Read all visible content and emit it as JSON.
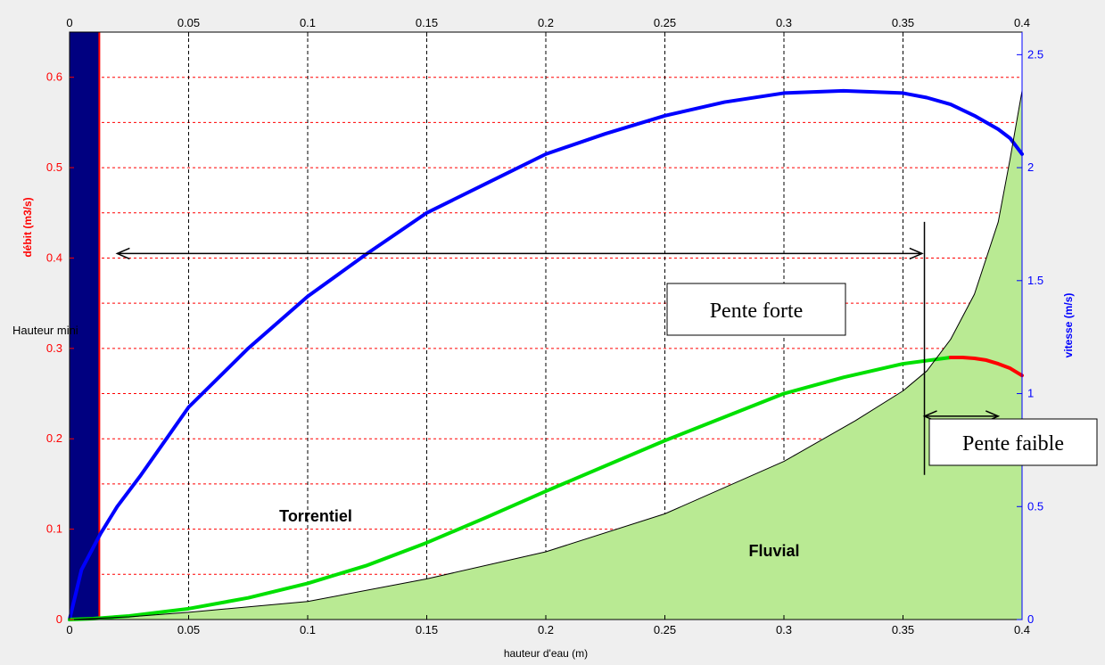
{
  "chart_data": {
    "type": "line",
    "x": {
      "label": "hauteur d'eau (m)",
      "lim": [
        0,
        0.4
      ],
      "ticks": [
        0,
        0.05,
        0.1,
        0.15,
        0.2,
        0.25,
        0.3,
        0.35,
        0.4
      ],
      "tick_labels": [
        "0",
        "0.05",
        "0.1",
        "0.15",
        "0.2",
        "0.25",
        "0.3",
        "0.35",
        "0.4"
      ],
      "top_ticks_mirrored": true
    },
    "y_left": {
      "label": "débit (m3/s)",
      "lim": [
        0,
        0.65
      ],
      "ticks": [
        0,
        0.1,
        0.2,
        0.3,
        0.4,
        0.5,
        0.6
      ],
      "tick_labels": [
        "0",
        "0.1",
        "0.2",
        "0.3",
        "0.4",
        "0.5",
        "0.6"
      ],
      "color": "#ff0000",
      "grid": "dashed red every 0.05"
    },
    "y_right": {
      "label": "vitesse (m/s)",
      "lim": [
        0,
        2.6
      ],
      "ticks": [
        0,
        0.5,
        1,
        1.5,
        2,
        2.5
      ],
      "tick_labels": [
        "0",
        "0.5",
        "1",
        "1.5",
        "2",
        "2.5"
      ],
      "color": "#0000ff"
    },
    "grid": true,
    "series": [
      {
        "name": "",
        "axis": "right",
        "color": "#0000ff",
        "x": [
          0,
          0.005,
          0.013,
          0.02,
          0.03,
          0.05,
          0.075,
          0.1,
          0.125,
          0.15,
          0.175,
          0.2,
          0.225,
          0.25,
          0.275,
          0.3,
          0.325,
          0.35,
          0.36,
          0.37,
          0.38,
          0.39,
          0.395,
          0.4
        ],
        "y": [
          0,
          0.22,
          0.38,
          0.5,
          0.64,
          0.94,
          1.2,
          1.43,
          1.62,
          1.8,
          1.93,
          2.06,
          2.15,
          2.23,
          2.29,
          2.33,
          2.34,
          2.33,
          2.31,
          2.28,
          2.23,
          2.17,
          2.13,
          2.06
        ]
      },
      {
        "name": "",
        "axis": "left",
        "color": "#00e000",
        "x": [
          0,
          0.01,
          0.025,
          0.05,
          0.075,
          0.1,
          0.125,
          0.15,
          0.175,
          0.2,
          0.225,
          0.25,
          0.275,
          0.3,
          0.325,
          0.35,
          0.37
        ],
        "y": [
          0,
          0.001,
          0.004,
          0.012,
          0.024,
          0.04,
          0.06,
          0.085,
          0.113,
          0.142,
          0.17,
          0.198,
          0.224,
          0.25,
          0.268,
          0.283,
          0.29
        ]
      },
      {
        "name": "",
        "axis": "left",
        "color": "#ff0000",
        "x": [
          0.37,
          0.375,
          0.38,
          0.385,
          0.39,
          0.395,
          0.4
        ],
        "y": [
          0.29,
          0.29,
          0.289,
          0.287,
          0.283,
          0.278,
          0.27
        ]
      },
      {
        "name": "",
        "axis": "left",
        "color": "#000000",
        "fill": "#b9ea93",
        "x": [
          0,
          0.025,
          0.05,
          0.1,
          0.15,
          0.2,
          0.25,
          0.3,
          0.33,
          0.35,
          0.36,
          0.37,
          0.38,
          0.39,
          0.395,
          0.4
        ],
        "y": [
          0,
          0.003,
          0.008,
          0.02,
          0.045,
          0.075,
          0.117,
          0.175,
          0.22,
          0.253,
          0.275,
          0.31,
          0.36,
          0.44,
          0.51,
          0.585
        ]
      }
    ],
    "hauteur_mini": {
      "x": [
        0,
        0.0125
      ],
      "fill": "#000080",
      "edge_color": "#ff0000"
    },
    "annotations": {
      "mini_label": "Hauteur mini",
      "torrentiel": "Torrentiel",
      "fluvial": "Fluvial",
      "pente_forte": "Pente forte",
      "pente_faible": "Pente faible",
      "arrow_long": {
        "x": [
          0.02,
          0.358
        ],
        "y": 0.405
      },
      "arrow_short": {
        "x": [
          0.359,
          0.39
        ],
        "y": 0.225
      },
      "divider_x": 0.359,
      "divider_y": [
        0.16,
        0.44
      ]
    }
  }
}
